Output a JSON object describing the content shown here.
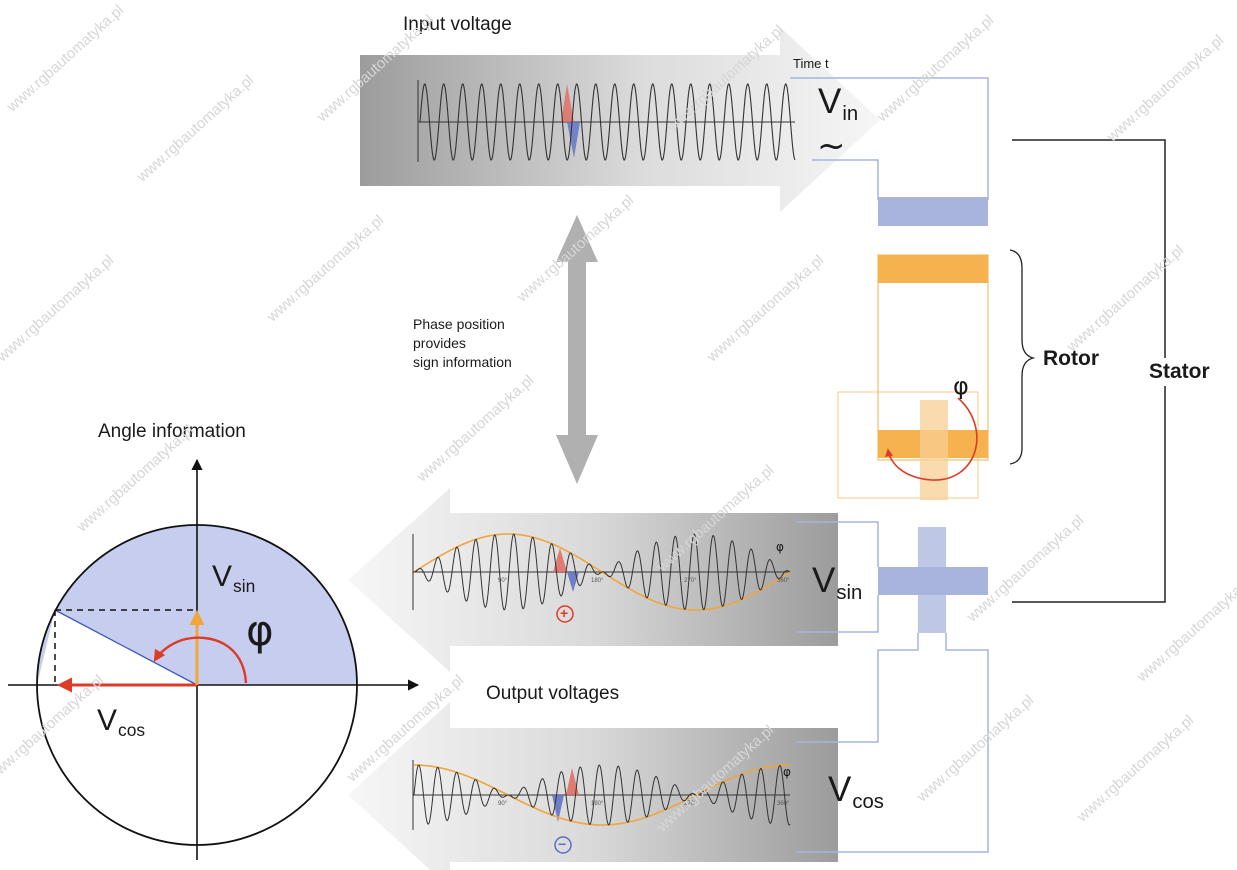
{
  "labels": {
    "input_voltage": "Input voltage",
    "time_t": "Time t",
    "v_in_main": "V",
    "v_in_sub": "in",
    "tilde": "~",
    "phase_line1": "Phase position",
    "phase_line2": "provides",
    "phase_line3": "sign information",
    "rotor": "Rotor",
    "stator": "Stator",
    "phi": "φ",
    "angle_information": "Angle information",
    "output_voltages": "Output voltages",
    "v_sin_main": "V",
    "v_sin_sub": "sin",
    "v_cos_main": "V",
    "v_cos_sub": "cos",
    "plus_sign": "+",
    "minus_sign": "−",
    "plot_tick_90": "90°",
    "plot_tick_180": "180°",
    "plot_tick_270": "270°",
    "plot_tick_360": "360°",
    "watermark_text": "www.rgbautomatyka.pl"
  },
  "colors": {
    "stator_coil_blue": "#a9b4dd",
    "rotor_coil_orange": "#f5b24e",
    "envelope_orange": "#f0a63a",
    "pos_lobe_red": "#e06a62",
    "neg_lobe_blue": "#5a6fc4",
    "phase_arrow_red": "#dd3b27",
    "circle_fill": "#c7cdee",
    "arrow_gray": "#b0b0b0"
  }
}
